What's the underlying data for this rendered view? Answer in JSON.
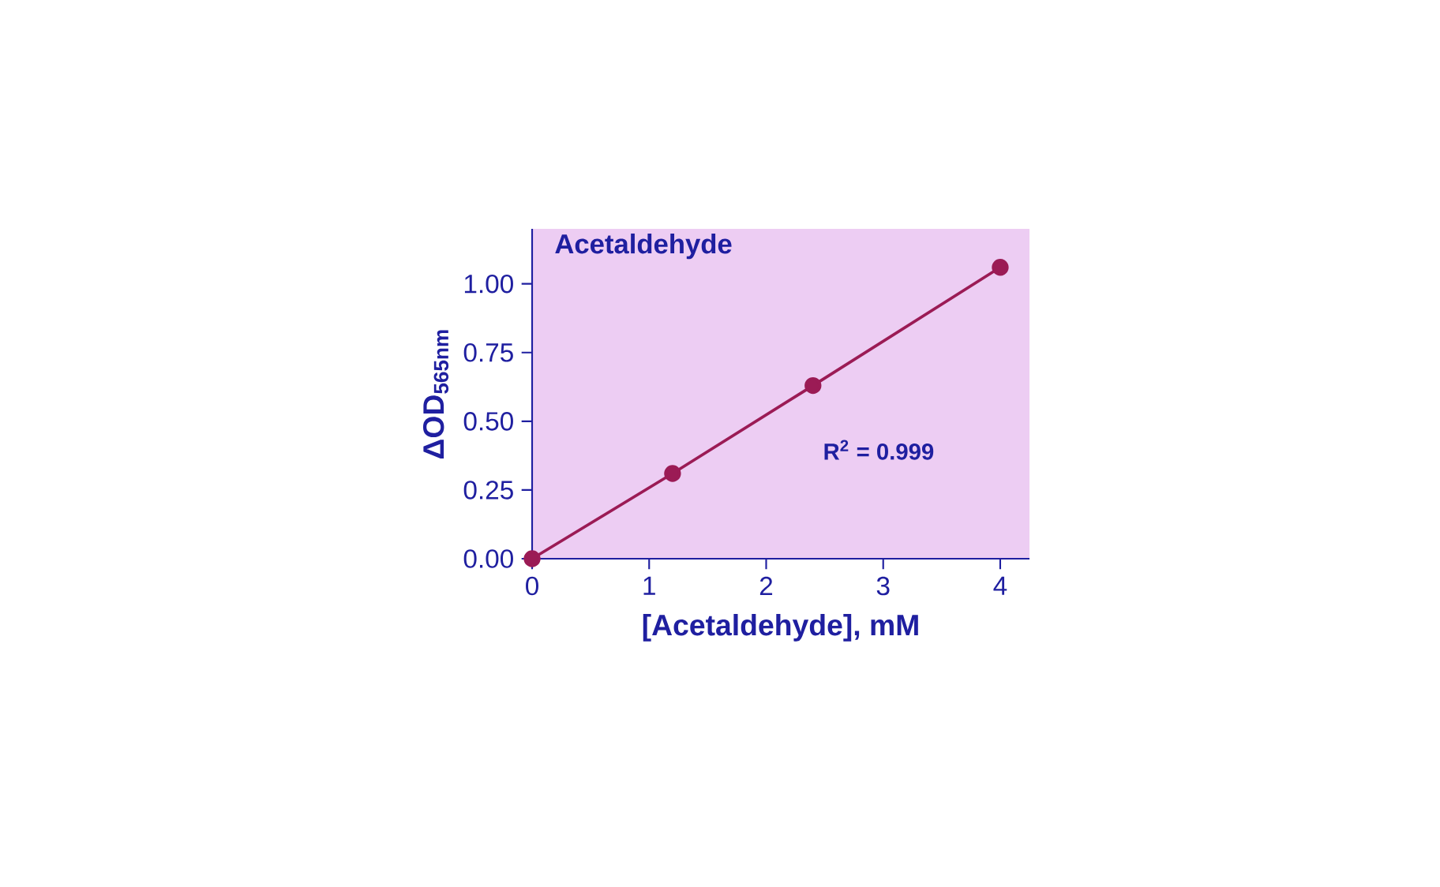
{
  "chart_data": {
    "type": "line",
    "title": "Acetaldehyde",
    "xlabel": "[Acetaldehyde], mM",
    "ylabel": "ΔOD$_{565nm}$",
    "annotations": [
      "R$^{2}$ = 0.999"
    ],
    "x": [
      0,
      1.2,
      2.4,
      4
    ],
    "series": [
      {
        "color": "#9b1b55",
        "values": [
          0,
          0.31,
          0.63,
          1.06
        ]
      }
    ],
    "xlim": [
      0,
      4.25
    ],
    "ylim": [
      0,
      1.2
    ],
    "xticks": [
      0,
      1,
      2,
      3,
      4
    ],
    "yticks": [
      {
        "value": 0,
        "label": "0.00"
      },
      {
        "value": 0.25,
        "label": "0.25"
      },
      {
        "value": 0.5,
        "label": "0.50"
      },
      {
        "value": 0.75,
        "label": "0.75"
      },
      {
        "value": 1,
        "label": "1.00"
      }
    ],
    "marker": "circle",
    "line_style": "solid"
  }
}
